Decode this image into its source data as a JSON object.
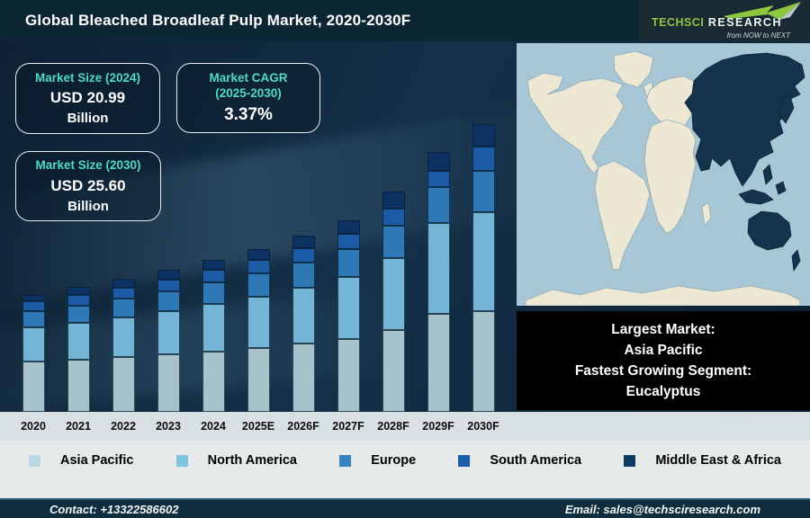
{
  "header": {
    "title": "Global Bleached Broadleaf Pulp Market, 2020-2030F",
    "logo": {
      "brand_primary": "TECHSCI",
      "brand_secondary": "RESEARCH",
      "tagline": "from NOW to NEXT"
    }
  },
  "stat_boxes": {
    "size_2024": {
      "label": "Market Size (2024)",
      "value": "USD 20.99",
      "unit": "Billion"
    },
    "cagr": {
      "label": "Market CAGR\n(2025-2030)",
      "value": "3.37%",
      "unit": ""
    },
    "size_2030": {
      "label": "Market Size (2030)",
      "value": "USD 25.60",
      "unit": "Billion"
    }
  },
  "chart_data": {
    "type": "bar",
    "stacked": true,
    "title": "Global Bleached Broadleaf Pulp Market, 2020-2030F",
    "categories": [
      "2020",
      "2021",
      "2022",
      "2023",
      "2024",
      "2025E",
      "2026F",
      "2027F",
      "2028F",
      "2029F",
      "2030F"
    ],
    "value_axis_visible": false,
    "values_unit": "relative segment height (no value axis shown; estimated from pixels)",
    "series": [
      {
        "name": "Asia Pacific",
        "color": "#a7c2cb",
        "values": [
          56,
          58,
          61,
          64,
          67,
          71,
          76,
          81,
          91,
          109,
          112
        ]
      },
      {
        "name": "North America",
        "color": "#74b4d4",
        "values": [
          38,
          41,
          44,
          48,
          53,
          57,
          62,
          69,
          80,
          101,
          110
        ]
      },
      {
        "name": "Europe",
        "color": "#2e79b5",
        "values": [
          18,
          19,
          21,
          22,
          24,
          26,
          28,
          31,
          36,
          40,
          46
        ]
      },
      {
        "name": "South America",
        "color": "#1b5aa5",
        "values": [
          11,
          12,
          12,
          13,
          14,
          15,
          16,
          17,
          19,
          18,
          27
        ]
      },
      {
        "name": "Middle East & Africa",
        "color": "#0b3263",
        "values": [
          7,
          9,
          10,
          11,
          11,
          12,
          14,
          15,
          19,
          21,
          25
        ]
      }
    ],
    "annotations": {
      "market_size_2024": "USD 20.99 Billion",
      "market_size_2030": "USD 25.60 Billion",
      "cagr_2025_2030": "3.37%"
    },
    "legend_position": "bottom"
  },
  "legend": [
    {
      "label": "Asia Pacific",
      "color": "#bcd8e4"
    },
    {
      "label": "North America",
      "color": "#7fc3de"
    },
    {
      "label": "Europe",
      "color": "#3584c0"
    },
    {
      "label": "South America",
      "color": "#1b5ea9"
    },
    {
      "label": "Middle East & Africa",
      "color": "#0d3a66"
    }
  ],
  "callout": {
    "lines": [
      "Largest Market:",
      "Asia Pacific",
      "Fastest Growing Segment:",
      "Eucalyptus"
    ]
  },
  "map": {
    "ocean_color": "#a7c7d6",
    "land_color": "#ece8d3",
    "highlight_color": "#15334d",
    "highlighted_region": "Asia Pacific"
  },
  "footer": {
    "contact": "Contact: +13322586602",
    "email": "Email: sales@techsciresearch.com"
  },
  "colors": {
    "accent_teal": "#4fd9c6",
    "brand_green": "#8dc63f",
    "header_bg": "#0c2634",
    "footer_bg": "#0f2d3d"
  }
}
